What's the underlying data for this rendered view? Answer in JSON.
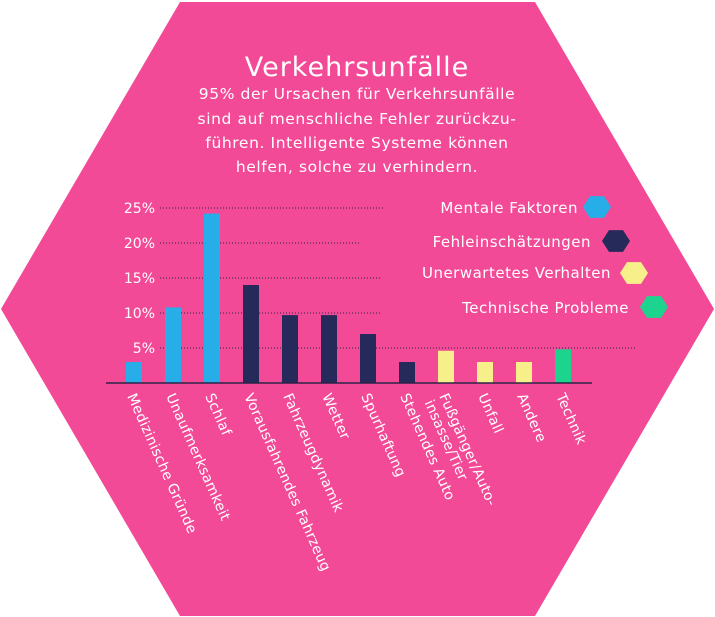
{
  "chart_data": {
    "type": "bar",
    "title": "Verkehrsunfälle",
    "subtitle_lines": [
      "95% der Ursachen für Verkehrsunfälle",
      "sind auf menschliche Fehler zurückzu-",
      "führen. Intelligente Systeme können",
      "helfen, solche zu verhindern."
    ],
    "ylim": [
      0,
      25
    ],
    "yticks": [
      5,
      10,
      15,
      20,
      25
    ],
    "ytick_labels": [
      "5%",
      "10%",
      "15%",
      "20%",
      "25%"
    ],
    "grid": "dotted horizontal",
    "legend_position": "right",
    "legend": [
      {
        "name": "Mentale Faktoren",
        "color": "#27aee8"
      },
      {
        "name": "Fehleinschätzungen",
        "color": "#262a5a"
      },
      {
        "name": "Unerwartetes Verhalten",
        "color": "#f7f08a"
      },
      {
        "name": "Technische Probleme",
        "color": "#1dd48f"
      }
    ],
    "bars": [
      {
        "label_lines": [
          "Medizinische Gründe"
        ],
        "value": 3,
        "group": 0
      },
      {
        "label_lines": [
          "Unaufmerksamkeit"
        ],
        "value": 10.8,
        "group": 0
      },
      {
        "label_lines": [
          "Schlaf"
        ],
        "value": 24.2,
        "group": 0
      },
      {
        "label_lines": [
          "Vorausfahrendes Fahrzeug"
        ],
        "value": 14,
        "group": 1
      },
      {
        "label_lines": [
          "Fahrzeugdynamik"
        ],
        "value": 9.7,
        "group": 1
      },
      {
        "label_lines": [
          "Wetter"
        ],
        "value": 9.7,
        "group": 1
      },
      {
        "label_lines": [
          "Spurhaftung"
        ],
        "value": 7,
        "group": 1
      },
      {
        "label_lines": [
          "Stehendes Auto"
        ],
        "value": 3,
        "group": 1
      },
      {
        "label_lines": [
          "Fußgänger/Auto-",
          "insasse/Tier"
        ],
        "value": 4.6,
        "group": 2
      },
      {
        "label_lines": [
          "Unfall"
        ],
        "value": 3,
        "group": 2
      },
      {
        "label_lines": [
          "Andere"
        ],
        "value": 3,
        "group": 2
      },
      {
        "label_lines": [
          "Technik"
        ],
        "value": 4.8,
        "group": 3
      }
    ],
    "colors": {
      "background": "#f24a97",
      "text": "#ffffff",
      "axis": "#2b2247"
    }
  }
}
